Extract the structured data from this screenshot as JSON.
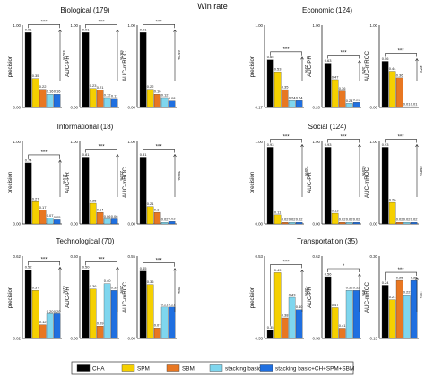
{
  "figure_title": "Win rate",
  "legend": [
    {
      "label": "CHA",
      "color": "#000000"
    },
    {
      "label": "SPM",
      "color": "#f5d000"
    },
    {
      "label": "SBM",
      "color": "#e87722"
    },
    {
      "label": "stacking basic",
      "color": "#7fd6ee"
    },
    {
      "label": "stacking basic+CH+SPM+SBM",
      "color": "#1f6fe0"
    }
  ],
  "chart_data": [
    {
      "type": "bar",
      "group": "Biological (179)",
      "ylabel": "precision",
      "ylim": [
        0,
        1
      ],
      "yticks_shown": [
        "1.00",
        "0.00"
      ],
      "categories": [
        "CHA",
        "SPM",
        "SBM",
        "stacking basic",
        "stacking basic+CH+SPM+SBM"
      ],
      "values": [
        0.91,
        0.35,
        0.22,
        0.16,
        0.16
      ],
      "labels": [
        "0.91",
        "0.35",
        "0.22",
        "0.16",
        "0.16"
      ],
      "sig": {
        "text": "***"
      },
      "pct": {
        "text": "462%"
      }
    },
    {
      "type": "bar",
      "group": "Biological (179)",
      "ylabel": "AUC-PR",
      "ylim": [
        0,
        1
      ],
      "yticks_shown": [
        "1.00",
        "0.00"
      ],
      "categories": [
        "CHA",
        "SPM",
        "SBM",
        "stacking basic",
        "stacking basic+CH+SPM+SBM"
      ],
      "values": [
        0.91,
        0.23,
        0.21,
        0.12,
        0.11
      ],
      "labels": [
        "0.91",
        "0.23",
        "0.21",
        "0.12",
        "0.11"
      ],
      "sig": {
        "text": "***"
      },
      "pct": {
        "text": "691%"
      }
    },
    {
      "type": "bar",
      "group": "Biological (179)",
      "ylabel": "AUC-mROC",
      "ylim": [
        0,
        1
      ],
      "yticks_shown": [
        "1.00",
        "0.00"
      ],
      "categories": [
        "CHA",
        "SPM",
        "SBM",
        "stacking basic",
        "stacking basic+CH+SPM+SBM"
      ],
      "values": [
        0.91,
        0.22,
        0.16,
        0.12,
        0.08
      ],
      "labels": [
        "0.91",
        "0.22",
        "0.16",
        "0.12",
        "0.08"
      ],
      "sig": {
        "text": "***"
      },
      "pct": {
        "text": "657%"
      }
    },
    {
      "type": "bar",
      "group": "Economic (124)",
      "ylabel": "precision",
      "ylim": [
        0.17,
        1
      ],
      "yticks_shown": [
        "1.00",
        "0.17"
      ],
      "categories": [
        "CHA",
        "SPM",
        "SBM",
        "stacking basic",
        "stacking basic+CH+SPM+SBM"
      ],
      "values": [
        0.65,
        0.53,
        0.35,
        0.24,
        0.24
      ],
      "labels": [
        "0.65",
        "0.53",
        "0.35",
        "0.24",
        "0.24"
      ],
      "sig": {
        "text": "***"
      },
      "pct": {
        "text": "23%"
      }
    },
    {
      "type": "bar",
      "group": "Economic (124)",
      "ylabel": "AUC-PR",
      "ylim": [
        0.2,
        1
      ],
      "yticks_shown": [
        "1.00",
        "0.20"
      ],
      "categories": [
        "CHA",
        "SPM",
        "SBM",
        "stacking basic",
        "stacking basic+CH+SPM+SBM"
      ],
      "values": [
        0.63,
        0.47,
        0.36,
        0.24,
        0.25
      ],
      "labels": [
        "0.63",
        "0.47",
        "0.36",
        "0.24",
        "0.25"
      ],
      "sig": {
        "text": "***"
      },
      "pct": {
        "text": "34%"
      }
    },
    {
      "type": "bar",
      "group": "Economic (124)",
      "ylabel": "AUC-mROC",
      "ylim": [
        0,
        1
      ],
      "yticks_shown": [
        "1.00",
        "0.00"
      ],
      "categories": [
        "CHA",
        "SPM",
        "SBM",
        "stacking basic",
        "stacking basic+CH+SPM+SBM"
      ],
      "values": [
        0.56,
        0.44,
        0.36,
        0.01,
        0.01
      ],
      "labels": [
        "0.56",
        "0.44",
        "0.36",
        "0.01",
        "0.01"
      ],
      "sig": {
        "text": "***"
      },
      "pct": {
        "text": "27%"
      }
    },
    {
      "type": "bar",
      "group": "Informational (18)",
      "ylabel": "precision",
      "ylim": [
        0,
        1
      ],
      "yticks_shown": [
        "1.00",
        "0.00"
      ],
      "categories": [
        "CHA",
        "SPM",
        "SBM",
        "stacking basic",
        "stacking basic+CH+SPM+SBM"
      ],
      "values": [
        0.74,
        0.27,
        0.17,
        0.07,
        0.05
      ],
      "labels": [
        "0.74",
        "0.27",
        "0.17",
        "0.07",
        "0.05"
      ],
      "sig": {
        "text": "***"
      },
      "pct": {
        "text": "174%"
      }
    },
    {
      "type": "bar",
      "group": "Informational (18)",
      "ylabel": "AUC-PR",
      "ylim": [
        0,
        1
      ],
      "yticks_shown": [
        "1.00",
        "0.00"
      ],
      "categories": [
        "CHA",
        "SPM",
        "SBM",
        "stacking basic",
        "stacking basic+CH+SPM+SBM"
      ],
      "values": [
        0.81,
        0.25,
        0.14,
        0.06,
        0.06
      ],
      "labels": [
        "0.81",
        "0.25",
        "0.14",
        "0.06",
        "0.06"
      ],
      "sig": {
        "text": "***"
      },
      "pct": {
        "text": "224%"
      }
    },
    {
      "type": "bar",
      "group": "Informational (18)",
      "ylabel": "AUC-mROC",
      "ylim": [
        0,
        1
      ],
      "yticks_shown": [
        "1.00",
        "0.00"
      ],
      "categories": [
        "CHA",
        "SPM",
        "SBM",
        "stacking basic",
        "stacking basic+CH+SPM+SBM"
      ],
      "values": [
        0.81,
        0.21,
        0.14,
        0.02,
        0.03
      ],
      "labels": [
        "0.81",
        "0.21",
        "0.14",
        "0.02",
        "0.03"
      ],
      "sig": {
        "text": "***"
      },
      "pct": {
        "text": "286%"
      }
    },
    {
      "type": "bar",
      "group": "Social (124)",
      "ylabel": "precision",
      "ylim": [
        0,
        1
      ],
      "yticks_shown": [
        "1.00",
        "0.00"
      ],
      "categories": [
        "CHA",
        "SPM",
        "SBM",
        "stacking basic",
        "stacking basic+CH+SPM+SBM"
      ],
      "values": [
        0.93,
        0.11,
        0.02,
        0.02,
        0.02
      ],
      "labels": [
        "0.93",
        "0.11",
        "0.02",
        "0.02",
        "0.02"
      ],
      "sig": {
        "text": "***"
      },
      "pct": {
        "text": "745%"
      }
    },
    {
      "type": "bar",
      "group": "Social (124)",
      "ylabel": "AUC-PR",
      "ylim": [
        0,
        1
      ],
      "yticks_shown": [
        "1.00",
        "0.00"
      ],
      "categories": [
        "CHA",
        "SPM",
        "SBM",
        "stacking basic",
        "stacking basic+CH+SPM+SBM"
      ],
      "values": [
        0.93,
        0.13,
        0.02,
        0.02,
        0.02
      ],
      "labels": [
        "0.93",
        "0.13",
        "0.02",
        "0.02",
        "0.02"
      ],
      "sig": {
        "text": "***"
      },
      "pct": {
        "text": "615%"
      }
    },
    {
      "type": "bar",
      "group": "Social (124)",
      "ylabel": "AUC-mROC",
      "ylim": [
        0,
        1
      ],
      "yticks_shown": [
        "1.00",
        "0.00"
      ],
      "categories": [
        "CHA",
        "SPM",
        "SBM",
        "stacking basic",
        "stacking basic+CH+SPM+SBM"
      ],
      "values": [
        0.93,
        0.26,
        0.02,
        0.02,
        0.02
      ],
      "labels": [
        "0.93",
        "0.26",
        "0.02",
        "0.02",
        "0.02"
      ],
      "sig": {
        "text": "***"
      },
      "pct": {
        "text": "258%"
      }
    },
    {
      "type": "bar",
      "group": "Technological (70)",
      "ylabel": "precision",
      "ylim": [
        0.02,
        0.62
      ],
      "yticks_shown": [
        "0.62",
        "0.02"
      ],
      "categories": [
        "CHA",
        "SPM",
        "SBM",
        "stacking basic",
        "stacking basic+CH+SPM+SBM"
      ],
      "values": [
        0.52,
        0.37,
        0.12,
        0.2,
        0.2
      ],
      "labels": [
        "0.52",
        "0.37",
        "0.12",
        "0.20",
        "0.20"
      ],
      "sig": {
        "text": "***"
      },
      "pct": {
        "text": "41%"
      }
    },
    {
      "type": "bar",
      "group": "Technological (70)",
      "ylabel": "AUC-PR",
      "ylim": [
        0,
        0.6
      ],
      "yticks_shown": [
        "0.60",
        "0.00"
      ],
      "categories": [
        "CHA",
        "SPM",
        "SBM",
        "stacking basic",
        "stacking basic+CH+SPM+SBM"
      ],
      "values": [
        0.5,
        0.36,
        0.09,
        0.4,
        0.35
      ],
      "labels": [
        "0.50",
        "0.36",
        "0.09",
        "0.40",
        "0.35"
      ],
      "sig": {
        "text": "***"
      },
      "pct": {
        "text": "25%"
      }
    },
    {
      "type": "bar",
      "group": "Technological (70)",
      "ylabel": "AUC-mROC",
      "ylim": [
        0,
        0.55
      ],
      "yticks_shown": [
        "0.55",
        "0.00"
      ],
      "categories": [
        "CHA",
        "SPM",
        "SBM",
        "stacking basic",
        "stacking basic+CH+SPM+SBM"
      ],
      "values": [
        0.45,
        0.36,
        0.07,
        0.21,
        0.21
      ],
      "labels": [
        "0.45",
        "0.36",
        "0.07",
        "0.21",
        "0.21"
      ],
      "sig": {
        "text": "***"
      },
      "pct": {
        "text": "25%"
      }
    },
    {
      "type": "bar",
      "group": "Transportation (35)",
      "ylabel": "precision",
      "ylim": [
        0.33,
        0.53
      ],
      "yticks_shown": [
        "0.53",
        "0.33"
      ],
      "categories": [
        "CHA",
        "SPM",
        "SBM",
        "stacking basic",
        "stacking basic+CH+SPM+SBM"
      ],
      "values": [
        0.35,
        0.49,
        0.38,
        0.43,
        0.4
      ],
      "labels": [
        "0.35",
        "0.49",
        "0.38",
        "0.43",
        "0.40"
      ],
      "sig": {
        "text": "***"
      },
      "pct": {
        "text": "+35%"
      }
    },
    {
      "type": "bar",
      "group": "Transportation (35)",
      "ylabel": "AUC-PR",
      "ylim": [
        0.38,
        0.62
      ],
      "yticks_shown": [
        "0.62",
        "0.38"
      ],
      "categories": [
        "CHA",
        "SPM",
        "SBM",
        "stacking basic",
        "stacking basic+CH+SPM+SBM"
      ],
      "values": [
        0.56,
        0.47,
        0.41,
        0.52,
        0.52
      ],
      "labels": [
        "0.56",
        "0.47",
        "0.41",
        "0.52",
        "0.52"
      ],
      "sig": {
        "text": "*"
      },
      "pct": {
        "text": "8%"
      }
    },
    {
      "type": "bar",
      "group": "Transportation (35)",
      "ylabel": "AUC-mROC",
      "ylim": [
        0.13,
        0.3
      ],
      "yticks_shown": [
        "0.30",
        "0.13"
      ],
      "categories": [
        "CHA",
        "SPM",
        "SBM",
        "stacking basic",
        "stacking basic+CH+SPM+SBM"
      ],
      "values": [
        0.24,
        0.21,
        0.25,
        0.22,
        0.25
      ],
      "labels": [
        "0.24",
        "0.21",
        "0.25",
        "0.22",
        "0.25"
      ],
      "sig": {
        "text": "***"
      },
      "pct": {
        "text": "+5%"
      }
    }
  ]
}
